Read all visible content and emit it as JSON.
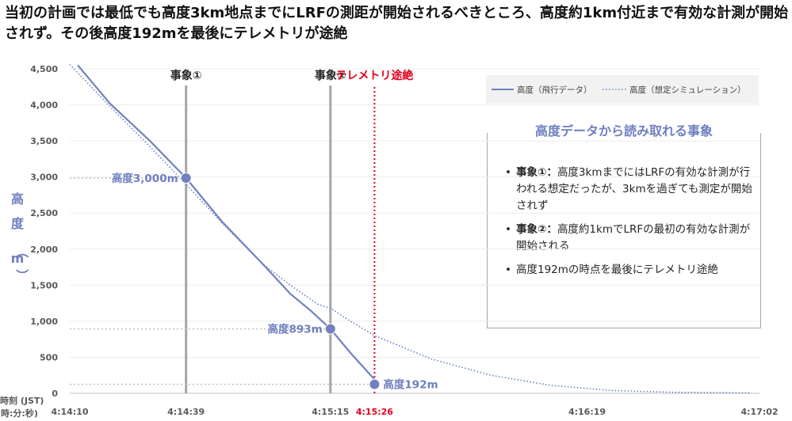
{
  "headline": "当初の計画では最低でも高度3km地点までにLRFの測距が開始されるべきところ、高度約1km付近まで有効な計測が開始されず。その後高度192mを最後にテレメトリが途絶",
  "panel": {
    "title": "高度データから読み取れる事象",
    "items": [
      {
        "label": "事象①：",
        "text": "高度3kmまでにはLRFの有効な計測が行われる想定だったが、3kmを過ぎても測定が開始されず"
      },
      {
        "label": "事象②：",
        "text": "高度約1kmでLRFの最初の有効な計測が開始される"
      },
      {
        "label": "",
        "text": "高度192mの時点を最後にテレメトリ途絶"
      }
    ]
  },
  "colors": {
    "flight": "#7081be",
    "simulation": "#6a7fc6",
    "event": "#a6a6a6",
    "telemetry": "#e0001b",
    "grid": "#bfbfbf",
    "text": "#595959",
    "accent": "#6d7fbf"
  },
  "chart_data": {
    "type": "line",
    "ylabel": "高度（m）",
    "xlabel": "時刻 (JST) (時:分:秒)",
    "ylim": [
      0,
      4500
    ],
    "yticks": [
      "4,500",
      "4,000",
      "3,500",
      "3,000",
      "2,500",
      "2,000",
      "1,500",
      "1,000",
      "500",
      "0"
    ],
    "xticks": [
      "4:14:10",
      "4:14:39",
      "4:15:15",
      "4:15:26",
      "4:16:19",
      "4:17:02"
    ],
    "xlim": [
      "4:14:10",
      "4:17:02"
    ],
    "x_axis_title_line1": "時刻 (JST)",
    "x_axis_title_line2": "(時:分:秒)",
    "series": [
      {
        "name": "高度（飛行データ）",
        "style": "solid",
        "x": [
          "4:14:12",
          "4:14:20",
          "4:14:30",
          "4:14:39",
          "4:14:48",
          "4:14:58",
          "4:15:05",
          "4:15:10",
          "4:15:15",
          "4:15:20",
          "4:15:26"
        ],
        "y": [
          4550,
          4020,
          3500,
          2985,
          2380,
          1800,
          1380,
          1150,
          893,
          560,
          192
        ]
      },
      {
        "name": "高度（想定シミュレーション）",
        "style": "dotted",
        "x": [
          "4:14:10",
          "4:14:20",
          "4:14:30",
          "4:14:39",
          "4:14:48",
          "4:14:58",
          "4:15:05",
          "4:15:12",
          "4:15:15",
          "4:15:20",
          "4:15:26",
          "4:15:40",
          "4:15:55",
          "4:16:10",
          "4:16:25",
          "4:16:40",
          "4:17:00"
        ],
        "y": [
          4560,
          3980,
          3420,
          2900,
          2360,
          1800,
          1500,
          1230,
          1180,
          1000,
          800,
          480,
          250,
          110,
          40,
          15,
          5
        ]
      }
    ],
    "events": [
      {
        "label": "事象①",
        "x": "4:14:39",
        "color": "#a6a6a6",
        "style": "solid"
      },
      {
        "label": "事象②",
        "x": "4:15:15",
        "color": "#a6a6a6",
        "style": "solid"
      },
      {
        "label": "テレメトリ途絶",
        "x": "4:15:26",
        "color": "#e0001b",
        "style": "dotted"
      }
    ],
    "annotations": [
      {
        "label": "高度3,000m",
        "x": "4:14:39",
        "y": 2985,
        "side": "left"
      },
      {
        "label": "高度893m",
        "x": "4:15:15",
        "y": 893,
        "side": "left"
      },
      {
        "label": "高度192m",
        "x": "4:15:26",
        "y": 125,
        "side": "right"
      }
    ]
  }
}
